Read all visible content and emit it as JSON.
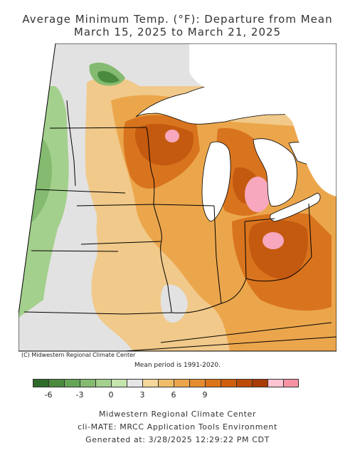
{
  "title": {
    "line1": "Average Minimum Temp. (°F): Departure from Mean",
    "line2": "March 15, 2025 to March 21, 2025"
  },
  "copyright": "(C) Midwestern Regional Climate Center",
  "mean_period": "Mean period is 1991-2020.",
  "legend": {
    "colors": [
      "#2e6b2a",
      "#4a8a3e",
      "#66a556",
      "#84bb70",
      "#a3d08c",
      "#c4e5ad",
      "#e6e6e6",
      "#f5d79a",
      "#efbd6a",
      "#eba64c",
      "#e58c2e",
      "#db7418",
      "#cf5e0c",
      "#bd4a06",
      "#a73c04",
      "#ffc4d2",
      "#f792a4"
    ],
    "tick_labels": [
      "-6",
      "-3",
      "0",
      "3",
      "6",
      "9"
    ],
    "tick_values": [
      -6,
      -3,
      0,
      3,
      6,
      9
    ]
  },
  "footer": {
    "line1": "Midwestern Regional Climate Center",
    "line2": "cli-MATE: MRCC Application Tools Environment",
    "line3": "Generated at: 3/28/2025 12:29:22 PM CDT"
  },
  "colors": {
    "water": "#ffffff",
    "border": "#000000",
    "neutral": "#e2e2e2",
    "light_green": "#a3d08c",
    "mid_green": "#84bb70",
    "dark_green": "#4a8a3e",
    "light_orange": "#f1c98a",
    "orange": "#eba64c",
    "deep_orange": "#d9741e",
    "rust": "#c45a10",
    "dark_rust": "#a84410",
    "pink": "#f7a8be"
  }
}
